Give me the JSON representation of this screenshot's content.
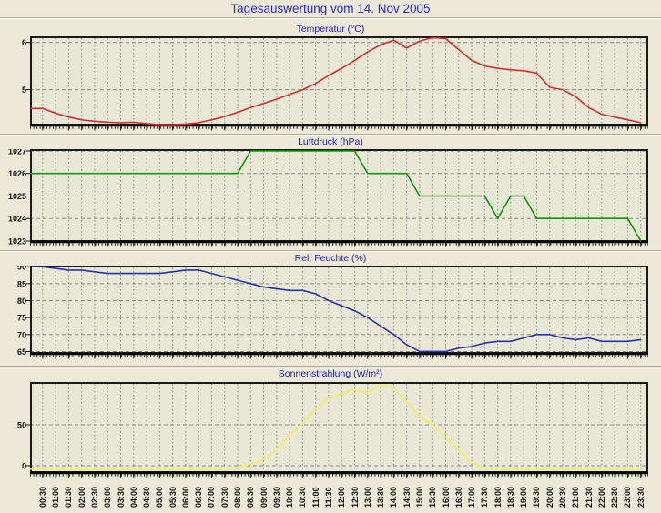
{
  "page": {
    "title": "Tagesauswertung vom 14. Nov 2005"
  },
  "colors": {
    "background": "#ece9d8",
    "plot_background": "#e9e7d5",
    "title_blue": "#2929c8",
    "grid_gray": "#8a8a8a",
    "temperature_red": "#d02f2f",
    "pressure_green": "#089908",
    "humidity_blue": "#2633aa",
    "radiation_yellow": "#eeee77"
  },
  "chart_data": {
    "type": "line",
    "categories": [
      "00:30",
      "01:00",
      "01:30",
      "02:00",
      "02:30",
      "03:00",
      "03:30",
      "04:00",
      "04:30",
      "05:00",
      "05:30",
      "06:00",
      "06:30",
      "07:00",
      "07:30",
      "08:00",
      "08:30",
      "09:00",
      "09:30",
      "10:00",
      "10:30",
      "11:00",
      "11:30",
      "12:00",
      "12:30",
      "13:00",
      "13:30",
      "14:00",
      "14:30",
      "15:00",
      "15:30",
      "16:00",
      "16:30",
      "17:00",
      "17:30",
      "18:00",
      "18:30",
      "19:00",
      "19:30",
      "20:00",
      "20:30",
      "21:00",
      "21:30",
      "22:00",
      "22:30",
      "23:00",
      "23:30"
    ],
    "grid": true,
    "legend": "none",
    "charts": [
      {
        "title": "Temperatur (°C)",
        "color": "#d02f2f",
        "ylim": [
          4.24,
          6.11
        ],
        "yticks": [
          5,
          6
        ],
        "values": [
          4.6,
          4.5,
          4.42,
          4.36,
          4.33,
          4.31,
          4.3,
          4.31,
          4.28,
          4.26,
          4.26,
          4.27,
          4.3,
          4.36,
          4.43,
          4.52,
          4.62,
          4.71,
          4.8,
          4.9,
          5.0,
          5.13,
          5.3,
          5.45,
          5.62,
          5.8,
          5.95,
          6.05,
          5.88,
          6.03,
          6.1,
          6.08,
          5.85,
          5.62,
          5.5,
          5.45,
          5.42,
          5.4,
          5.35,
          5.05,
          5.0,
          4.85,
          4.62,
          4.48,
          4.42,
          4.36,
          4.3
        ]
      },
      {
        "title": "Luftdruck (hPa)",
        "color": "#089908",
        "ylim": [
          1023,
          1027.04
        ],
        "yticks": [
          1023,
          1024,
          1025,
          1026,
          1027
        ],
        "values": [
          1026,
          1026,
          1026,
          1026,
          1026,
          1026,
          1026,
          1026,
          1026,
          1026,
          1026,
          1026,
          1026,
          1026,
          1026,
          1026,
          1027,
          1027,
          1027,
          1027,
          1027,
          1027,
          1027,
          1027,
          1027,
          1026,
          1026,
          1026,
          1026,
          1025,
          1025,
          1025,
          1025,
          1025,
          1025,
          1024,
          1025,
          1025,
          1024,
          1024,
          1024,
          1024,
          1024,
          1024,
          1024,
          1024,
          1023
        ]
      },
      {
        "title": "Rel. Feuchte (%)",
        "color": "#2633aa",
        "ylim": [
          64.45,
          90.05
        ],
        "yticks": [
          65,
          70,
          75,
          80,
          85,
          90
        ],
        "values": [
          90,
          89.5,
          89,
          89,
          88.5,
          88,
          88,
          88,
          88,
          88,
          88.5,
          89,
          89,
          88,
          87,
          86,
          85,
          84,
          83.5,
          83,
          83,
          82,
          80,
          78.5,
          77,
          75,
          72.5,
          70,
          67,
          65,
          65,
          65,
          66,
          66.5,
          67.5,
          68,
          68,
          69,
          70,
          70,
          69,
          68.5,
          69,
          68,
          68,
          68,
          68.5
        ]
      },
      {
        "title": "Sonnenstrahlung (W/m²)",
        "color": "#eeee77",
        "ylim": [
          -7.8,
          101.1
        ],
        "yticks": [
          0,
          50
        ],
        "values": [
          -4,
          -4,
          -4,
          -4,
          -4,
          -4,
          -4,
          -4,
          -4,
          -4,
          -4,
          -4,
          -4,
          -4,
          -4,
          -2,
          2,
          8,
          20,
          38,
          52,
          70,
          82,
          88,
          93,
          89,
          99,
          94,
          78,
          60,
          50,
          35,
          18,
          4,
          -4,
          -4,
          -4,
          -4,
          -4,
          -4,
          -4,
          -4,
          -4,
          -4,
          -4,
          -4,
          -4
        ]
      }
    ]
  }
}
